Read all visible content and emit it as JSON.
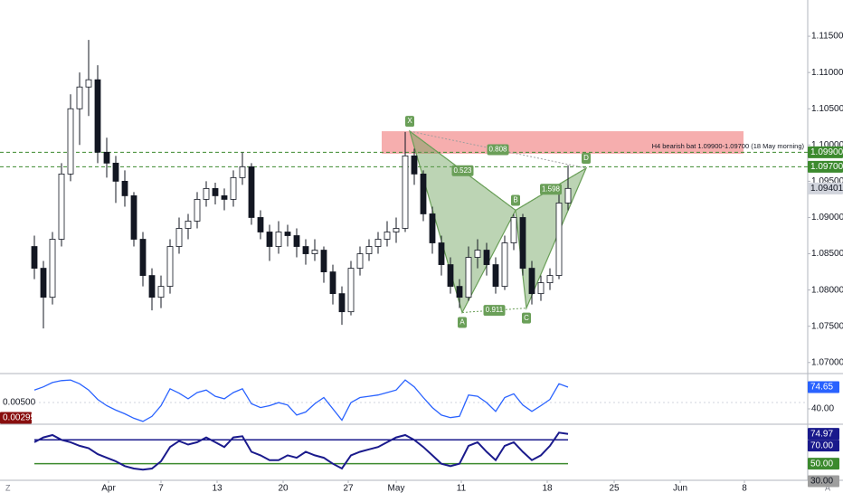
{
  "chart_data": [
    {
      "type": "candlestick",
      "xlim": [
        -3.8,
        85.5
      ],
      "xticks": [
        {
          "value": 8.2,
          "label": "Apr"
        },
        {
          "value": 14,
          "label": "7"
        },
        {
          "value": 20.2,
          "label": "13"
        },
        {
          "value": 27.5,
          "label": "20"
        },
        {
          "value": 34.7,
          "label": "27"
        },
        {
          "value": 40,
          "label": "May"
        },
        {
          "value": 47.2,
          "label": "11"
        },
        {
          "value": 56.7,
          "label": "18"
        },
        {
          "value": 64.1,
          "label": "25"
        },
        {
          "value": 71.4,
          "label": "Jun"
        },
        {
          "value": 78.5,
          "label": "8"
        }
      ],
      "ylim": [
        1.0686,
        1.12
      ],
      "yticks": [
        {
          "value": 1.07,
          "label": "1.07000"
        },
        {
          "value": 1.075,
          "label": "1.07500"
        },
        {
          "value": 1.08,
          "label": "1.08000"
        },
        {
          "value": 1.085,
          "label": "1.08500"
        },
        {
          "value": 1.09,
          "label": "1.09000"
        },
        {
          "value": 1.095,
          "label": "1.09500"
        },
        {
          "value": 1.1,
          "label": "1.10000"
        },
        {
          "value": 1.105,
          "label": "1.10500"
        },
        {
          "value": 1.11,
          "label": "1.11000"
        },
        {
          "value": 1.115,
          "label": "1.11500"
        }
      ],
      "up_color": "#ffffff",
      "down_color": "#131722",
      "outline_color": "#131722",
      "open": [
        1.086,
        1.083,
        1.079,
        1.087,
        1.096,
        1.105,
        1.108,
        1.109,
        1.099,
        1.0975,
        1.095,
        1.093,
        1.087,
        1.082,
        1.079,
        1.0805,
        1.086,
        1.0885,
        1.0895,
        1.0925,
        1.094,
        1.093,
        1.0925,
        1.0955,
        1.097,
        1.09,
        1.088,
        1.086,
        1.088,
        1.0875,
        1.086,
        1.085,
        1.0855,
        1.0825,
        1.0795,
        1.077,
        1.083,
        1.085,
        1.086,
        1.087,
        1.088,
        1.0885,
        1.0985,
        1.096,
        1.0905,
        1.0865,
        1.0835,
        1.0805,
        1.079,
        1.0845,
        1.0855,
        1.0835,
        1.0805,
        1.0865,
        1.09,
        1.083,
        1.0795,
        1.081,
        1.082,
        1.092
      ],
      "high": [
        1.0875,
        1.084,
        1.088,
        1.0975,
        1.107,
        1.11,
        1.1145,
        1.111,
        1.101,
        1.0985,
        1.0965,
        1.0935,
        1.088,
        1.083,
        1.082,
        1.087,
        1.09,
        1.0905,
        1.0935,
        1.095,
        1.0948,
        1.094,
        1.0965,
        1.099,
        1.0975,
        1.091,
        1.089,
        1.0895,
        1.089,
        1.0885,
        1.087,
        1.087,
        1.086,
        1.0835,
        1.0805,
        1.084,
        1.086,
        1.087,
        1.088,
        1.0895,
        1.09,
        1.1018,
        1.0995,
        1.0965,
        1.0915,
        1.0875,
        1.0845,
        1.0815,
        1.086,
        1.087,
        1.0865,
        1.0845,
        1.0875,
        1.0905,
        1.0905,
        1.084,
        1.082,
        1.083,
        1.0935,
        1.0972
      ],
      "low": [
        1.0815,
        1.0747,
        1.078,
        1.086,
        1.095,
        1.1,
        1.104,
        1.0975,
        1.0955,
        1.092,
        1.0915,
        1.086,
        1.0805,
        1.0772,
        1.0775,
        1.0795,
        1.085,
        1.087,
        1.0885,
        1.0915,
        1.0918,
        1.091,
        1.0915,
        1.0945,
        1.089,
        1.087,
        1.084,
        1.085,
        1.086,
        1.0845,
        1.0835,
        1.084,
        1.081,
        1.078,
        1.0752,
        1.0765,
        1.082,
        1.084,
        1.085,
        1.086,
        1.0865,
        1.088,
        1.0945,
        1.0895,
        1.085,
        1.082,
        1.0795,
        1.0775,
        1.0785,
        1.083,
        1.082,
        1.0795,
        1.08,
        1.0855,
        1.082,
        1.078,
        1.0785,
        1.08,
        1.0815,
        1.091
      ],
      "close": [
        1.083,
        1.079,
        1.087,
        1.096,
        1.105,
        1.108,
        1.109,
        1.099,
        1.0975,
        1.095,
        1.093,
        1.087,
        1.082,
        1.079,
        1.0805,
        1.086,
        1.0885,
        1.0895,
        1.0925,
        1.094,
        1.093,
        1.0925,
        1.0955,
        1.097,
        1.09,
        1.088,
        1.086,
        1.088,
        1.0875,
        1.086,
        1.085,
        1.0855,
        1.0825,
        1.0795,
        1.077,
        1.083,
        1.085,
        1.086,
        1.087,
        1.088,
        1.0885,
        1.0985,
        1.096,
        1.0905,
        1.0865,
        1.0835,
        1.0805,
        1.079,
        1.0845,
        1.0855,
        1.0835,
        1.0805,
        1.0865,
        1.09,
        1.083,
        1.0795,
        1.081,
        1.082,
        1.092,
        1.09401
      ],
      "last_price": {
        "value": 1.09401,
        "label": "1.09401"
      },
      "levels": [
        {
          "value": 1.099,
          "label": "1.09900"
        },
        {
          "value": 1.097,
          "label": "1.09700"
        }
      ],
      "level_color": "#3c8a2e",
      "zone": {
        "x": [
          38.4,
          78.4
        ],
        "y": [
          1.0988,
          1.1019
        ],
        "color": "#f28b8b"
      },
      "annotation": "H4 bearish bat 1.09900-1.09700 (18 May morning)",
      "pattern": {
        "color": "#6a9f58",
        "points": [
          {
            "label": "X",
            "x": 41.5,
            "y": 1.1019
          },
          {
            "label": "A",
            "x": 47.3,
            "y": 1.0769
          },
          {
            "label": "B",
            "x": 53.2,
            "y": 1.091
          },
          {
            "label": "C",
            "x": 54.4,
            "y": 1.0775
          },
          {
            "label": "D",
            "x": 61,
            "y": 1.0968
          }
        ],
        "ratios": [
          0.808,
          0.523,
          0.911,
          1.598
        ]
      }
    },
    {
      "type": "line",
      "color": "#2962ff",
      "ylim": [
        16.9,
        94.8
      ],
      "yticks": [
        {
          "value": 40,
          "label": "40.00"
        }
      ],
      "last_value": {
        "value": 74.65,
        "label": "74.65"
      },
      "values": [
        70,
        75,
        82,
        85,
        86,
        80,
        70,
        55,
        45,
        38,
        32,
        25,
        20,
        28,
        45,
        72,
        65,
        56,
        66,
        70,
        60,
        56,
        66,
        72,
        48,
        42,
        45,
        50,
        46,
        30,
        35,
        48,
        58,
        40,
        22,
        50,
        58,
        60,
        62,
        66,
        70,
        86,
        75,
        58,
        42,
        30,
        26,
        28,
        62,
        60,
        50,
        36,
        58,
        64,
        46,
        36,
        45,
        55,
        80,
        74.65
      ],
      "left_axis": {
        "ylim": [
          0.00223,
          0.00874
        ],
        "yticks": [
          {
            "value": 0.005,
            "label": "0.00500"
          }
        ],
        "last_value": {
          "value": 0.00295,
          "label": "0.00295"
        },
        "tag_color": "#880e0e"
      }
    },
    {
      "type": "line",
      "color": "#1a1a8c",
      "ylim": [
        36.9,
        82.3
      ],
      "last_value": {
        "value": 74.97,
        "label": "74.97"
      },
      "levels": [
        {
          "value": 70,
          "label": "70.00",
          "color": "#1a1a8c"
        },
        {
          "value": 50,
          "label": "50.00",
          "color": "#3c8a2e"
        },
        {
          "value": 30,
          "label": "30.00",
          "color": "#9e9e9e"
        }
      ],
      "values": [
        68,
        72,
        74,
        70,
        68,
        65,
        63,
        58,
        55,
        52,
        48,
        46,
        45,
        46,
        52,
        64,
        69,
        66,
        68,
        72,
        68,
        64,
        72,
        73,
        60,
        57,
        53,
        53,
        57,
        55,
        60,
        57,
        55,
        50,
        46,
        57,
        60,
        62,
        64,
        68,
        72,
        74,
        70,
        64,
        57,
        50,
        48,
        50,
        65,
        68,
        60,
        53,
        65,
        68,
        60,
        53,
        57,
        65,
        76,
        74.97
      ]
    }
  ],
  "ui": {
    "left_icon": "Z",
    "right_icon": "A"
  }
}
